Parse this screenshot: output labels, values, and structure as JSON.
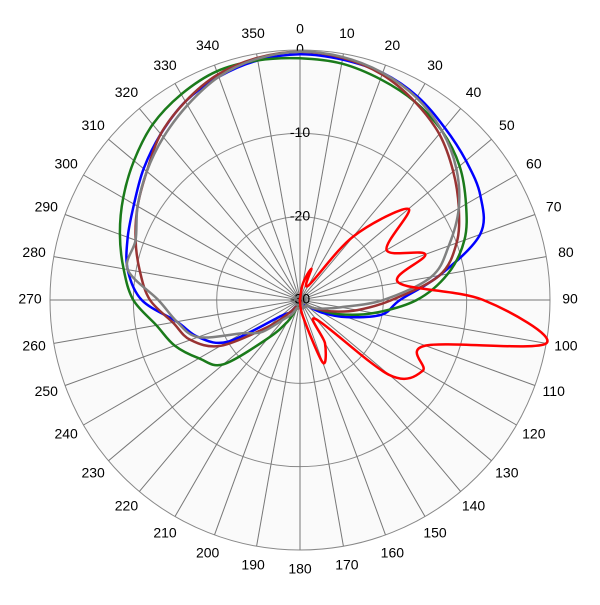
{
  "chart_data": {
    "type": "polar",
    "theta": [
      0,
      10,
      20,
      30,
      40,
      50,
      60,
      70,
      80,
      90,
      100,
      110,
      120,
      130,
      140,
      150,
      160,
      170,
      180,
      190,
      200,
      210,
      220,
      230,
      240,
      250,
      260,
      270,
      280,
      290,
      300,
      310,
      320,
      330,
      340,
      350
    ],
    "thetaticks": [
      0,
      10,
      20,
      30,
      40,
      50,
      60,
      70,
      80,
      90,
      100,
      110,
      120,
      130,
      140,
      150,
      160,
      170,
      180,
      190,
      200,
      210,
      220,
      230,
      240,
      250,
      260,
      270,
      280,
      290,
      300,
      310,
      320,
      330,
      340,
      350
    ],
    "rlim": [
      -30,
      0
    ],
    "rticks": [
      -30,
      -20,
      -10,
      0
    ],
    "grid": true,
    "series": [
      {
        "color": "#0000ff",
        "values": [
          -0.5,
          -0.7,
          -1,
          -1.8,
          -3,
          -4,
          -5,
          -7,
          -13,
          -18,
          -20,
          -24,
          -27,
          -29,
          -29,
          -29,
          -29,
          -29,
          -29,
          -29,
          -29,
          -29,
          -28,
          -27,
          -20,
          -17,
          -15,
          -11,
          -9,
          -8,
          -7,
          -5.5,
          -4,
          -2.5,
          -1.5,
          -0.8
        ]
      },
      {
        "color": "#1a7a1a",
        "values": [
          -1,
          -1.2,
          -1.8,
          -2.5,
          -3.5,
          -5,
          -7,
          -9,
          -12,
          -16,
          -21,
          -25,
          -28,
          -29,
          -29,
          -29,
          -29,
          -29,
          -29,
          -29,
          -29,
          -27,
          -24,
          -18,
          -16,
          -14,
          -12.5,
          -10,
          -8.5,
          -7,
          -5.5,
          -4,
          -2.5,
          -1.5,
          -0.8,
          -0.8
        ]
      },
      {
        "color": "#993333",
        "values": [
          -0.2,
          -0.5,
          -1.2,
          -2.5,
          -4,
          -6,
          -8,
          -10,
          -13,
          -19,
          -23,
          -26,
          -28,
          -29,
          -29,
          -29,
          -29,
          -29,
          -29,
          -29,
          -29,
          -29,
          -28,
          -25,
          -19,
          -16,
          -14.5,
          -12,
          -10.5,
          -9,
          -7.5,
          -6,
          -4,
          -2.5,
          -1.2,
          -0.5
        ]
      },
      {
        "color": "#808080",
        "values": [
          -0.2,
          -0.4,
          -1,
          -2,
          -3.5,
          -5.5,
          -8,
          -11,
          -14,
          -20,
          -25,
          -27,
          -28,
          -29,
          -29,
          -29,
          -29,
          -29,
          -29,
          -29,
          -29,
          -28,
          -27,
          -24,
          -22,
          -17,
          -15,
          -13,
          -9,
          -9,
          -7.5,
          -6,
          -4.5,
          -3,
          -1.5,
          -0.6
        ]
      },
      {
        "color": "#ff0000",
        "values": [
          -30,
          -28,
          -26,
          -28,
          -20,
          -13,
          -18,
          -14,
          -18,
          -8,
          0,
          -14,
          -13,
          -16,
          -27,
          -24,
          -22,
          -28,
          -30,
          -30,
          -30,
          -30,
          -30,
          -30,
          -30,
          -30,
          -30,
          -30,
          -30,
          -30,
          -30,
          -30,
          -30,
          -30,
          -30,
          -30
        ]
      }
    ]
  }
}
